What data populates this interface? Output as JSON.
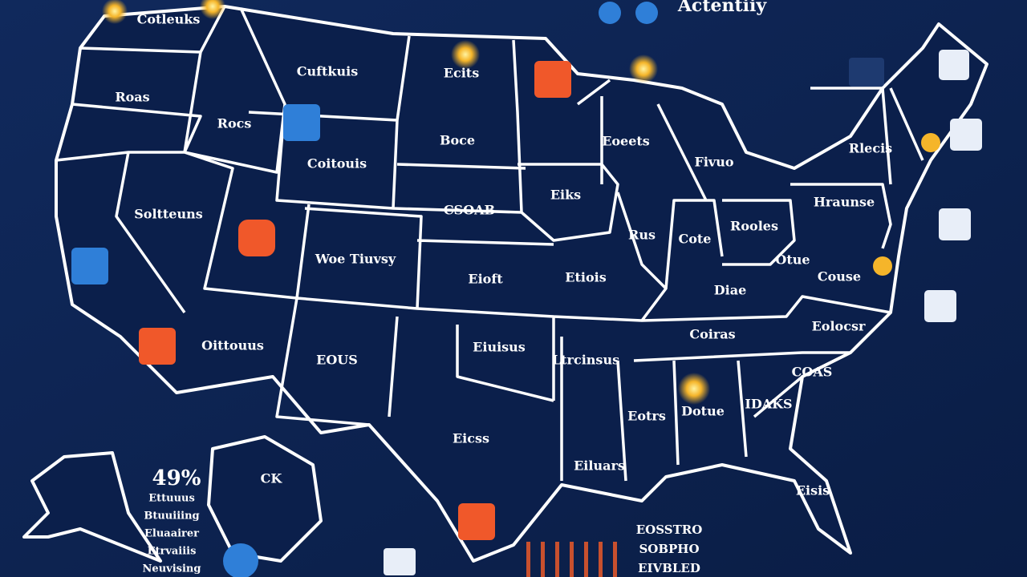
{
  "header": {
    "title": "Actentiiy"
  },
  "regions": [
    {
      "label": "Cotleuks"
    },
    {
      "label": "Cuftkuis"
    },
    {
      "label": "Ecits"
    },
    {
      "label": "Roas"
    },
    {
      "label": "Rocs"
    },
    {
      "label": "Coitouis"
    },
    {
      "label": "Boce"
    },
    {
      "label": "Eoeets"
    },
    {
      "label": "Rlecis"
    },
    {
      "label": "Soltteuns"
    },
    {
      "label": "Eiks"
    },
    {
      "label": "Fivuo"
    },
    {
      "label": "CSOAB"
    },
    {
      "label": "Hraunse"
    },
    {
      "label": "Rooles"
    },
    {
      "label": "Rus"
    },
    {
      "label": "Cote"
    },
    {
      "label": "Woe Tiuvsy"
    },
    {
      "label": "Eioft"
    },
    {
      "label": "Etiois"
    },
    {
      "label": "Otue"
    },
    {
      "label": "Couse"
    },
    {
      "label": "Diae"
    },
    {
      "label": "Coiras"
    },
    {
      "label": "Eolocsr"
    },
    {
      "label": "Oittouus"
    },
    {
      "label": "Eiuisus"
    },
    {
      "label": "Ltrcinsus"
    },
    {
      "label": "COAS"
    },
    {
      "label": "EOUS"
    },
    {
      "label": "IDAKS"
    },
    {
      "label": "Eotrs"
    },
    {
      "label": "Dotue"
    },
    {
      "label": "Eicss"
    },
    {
      "label": "Eiluars"
    },
    {
      "label": "CK"
    },
    {
      "label": "Eisis"
    }
  ],
  "stat": {
    "value": "49%",
    "items": [
      "Ettuuus",
      "Btuuiiing",
      "Eluaairer",
      "Etrvaiiis",
      "Neuvising"
    ]
  },
  "legend_right": [
    "EOSSTRO",
    "SOBPHO",
    "EIVBLED"
  ]
}
